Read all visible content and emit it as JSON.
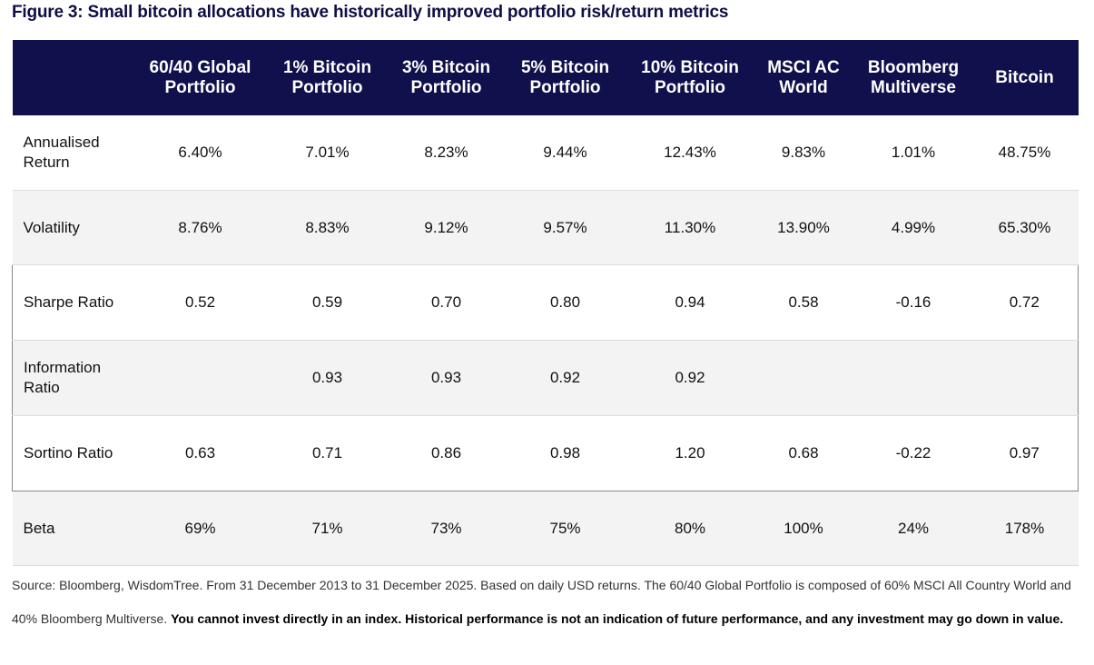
{
  "title": "Figure 3: Small bitcoin allocations have historically improved portfolio risk/return metrics",
  "table": {
    "columns": [
      "60/40 Global Portfolio",
      "1% Bitcoin Portfolio",
      "3% Bitcoin Portfolio",
      "5% Bitcoin Portfolio",
      "10% Bitcoin Portfolio",
      "MSCI AC World",
      "Bloomberg Multiverse",
      "Bitcoin"
    ],
    "rows": [
      {
        "label": "Annualised Return",
        "cells": [
          "6.40%",
          "7.01%",
          "8.23%",
          "9.44%",
          "12.43%",
          "9.83%",
          "1.01%",
          "48.75%"
        ]
      },
      {
        "label": "Volatility",
        "cells": [
          "8.76%",
          "8.83%",
          "9.12%",
          "9.57%",
          "11.30%",
          "13.90%",
          "4.99%",
          "65.30%"
        ]
      },
      {
        "label": "Sharpe Ratio",
        "cells": [
          "0.52",
          "0.59",
          "0.70",
          "0.80",
          "0.94",
          "0.58",
          "-0.16",
          "0.72"
        ]
      },
      {
        "label": "Information Ratio",
        "cells": [
          null,
          "0.93",
          "0.93",
          "0.92",
          "0.92",
          null,
          null,
          null
        ]
      },
      {
        "label": "Sortino Ratio",
        "cells": [
          "0.63",
          "0.71",
          "0.86",
          "0.98",
          "1.20",
          "0.68",
          "-0.22",
          "0.97"
        ]
      },
      {
        "label": "Beta",
        "cells": [
          "69%",
          "71%",
          "73%",
          "75%",
          "80%",
          "100%",
          "24%",
          "178%"
        ]
      }
    ]
  },
  "source": {
    "text": "Source: Bloomberg, WisdomTree. From 31 December 2013 to 31 December 2025. Based on daily USD returns. The 60/40 Global Portfolio is composed of 60% MSCI All Country World and 40% Bloomberg Multiverse.",
    "bold": "You cannot invest directly in an index. Historical performance is not an indication of future performance, and any investment may go down in value."
  }
}
